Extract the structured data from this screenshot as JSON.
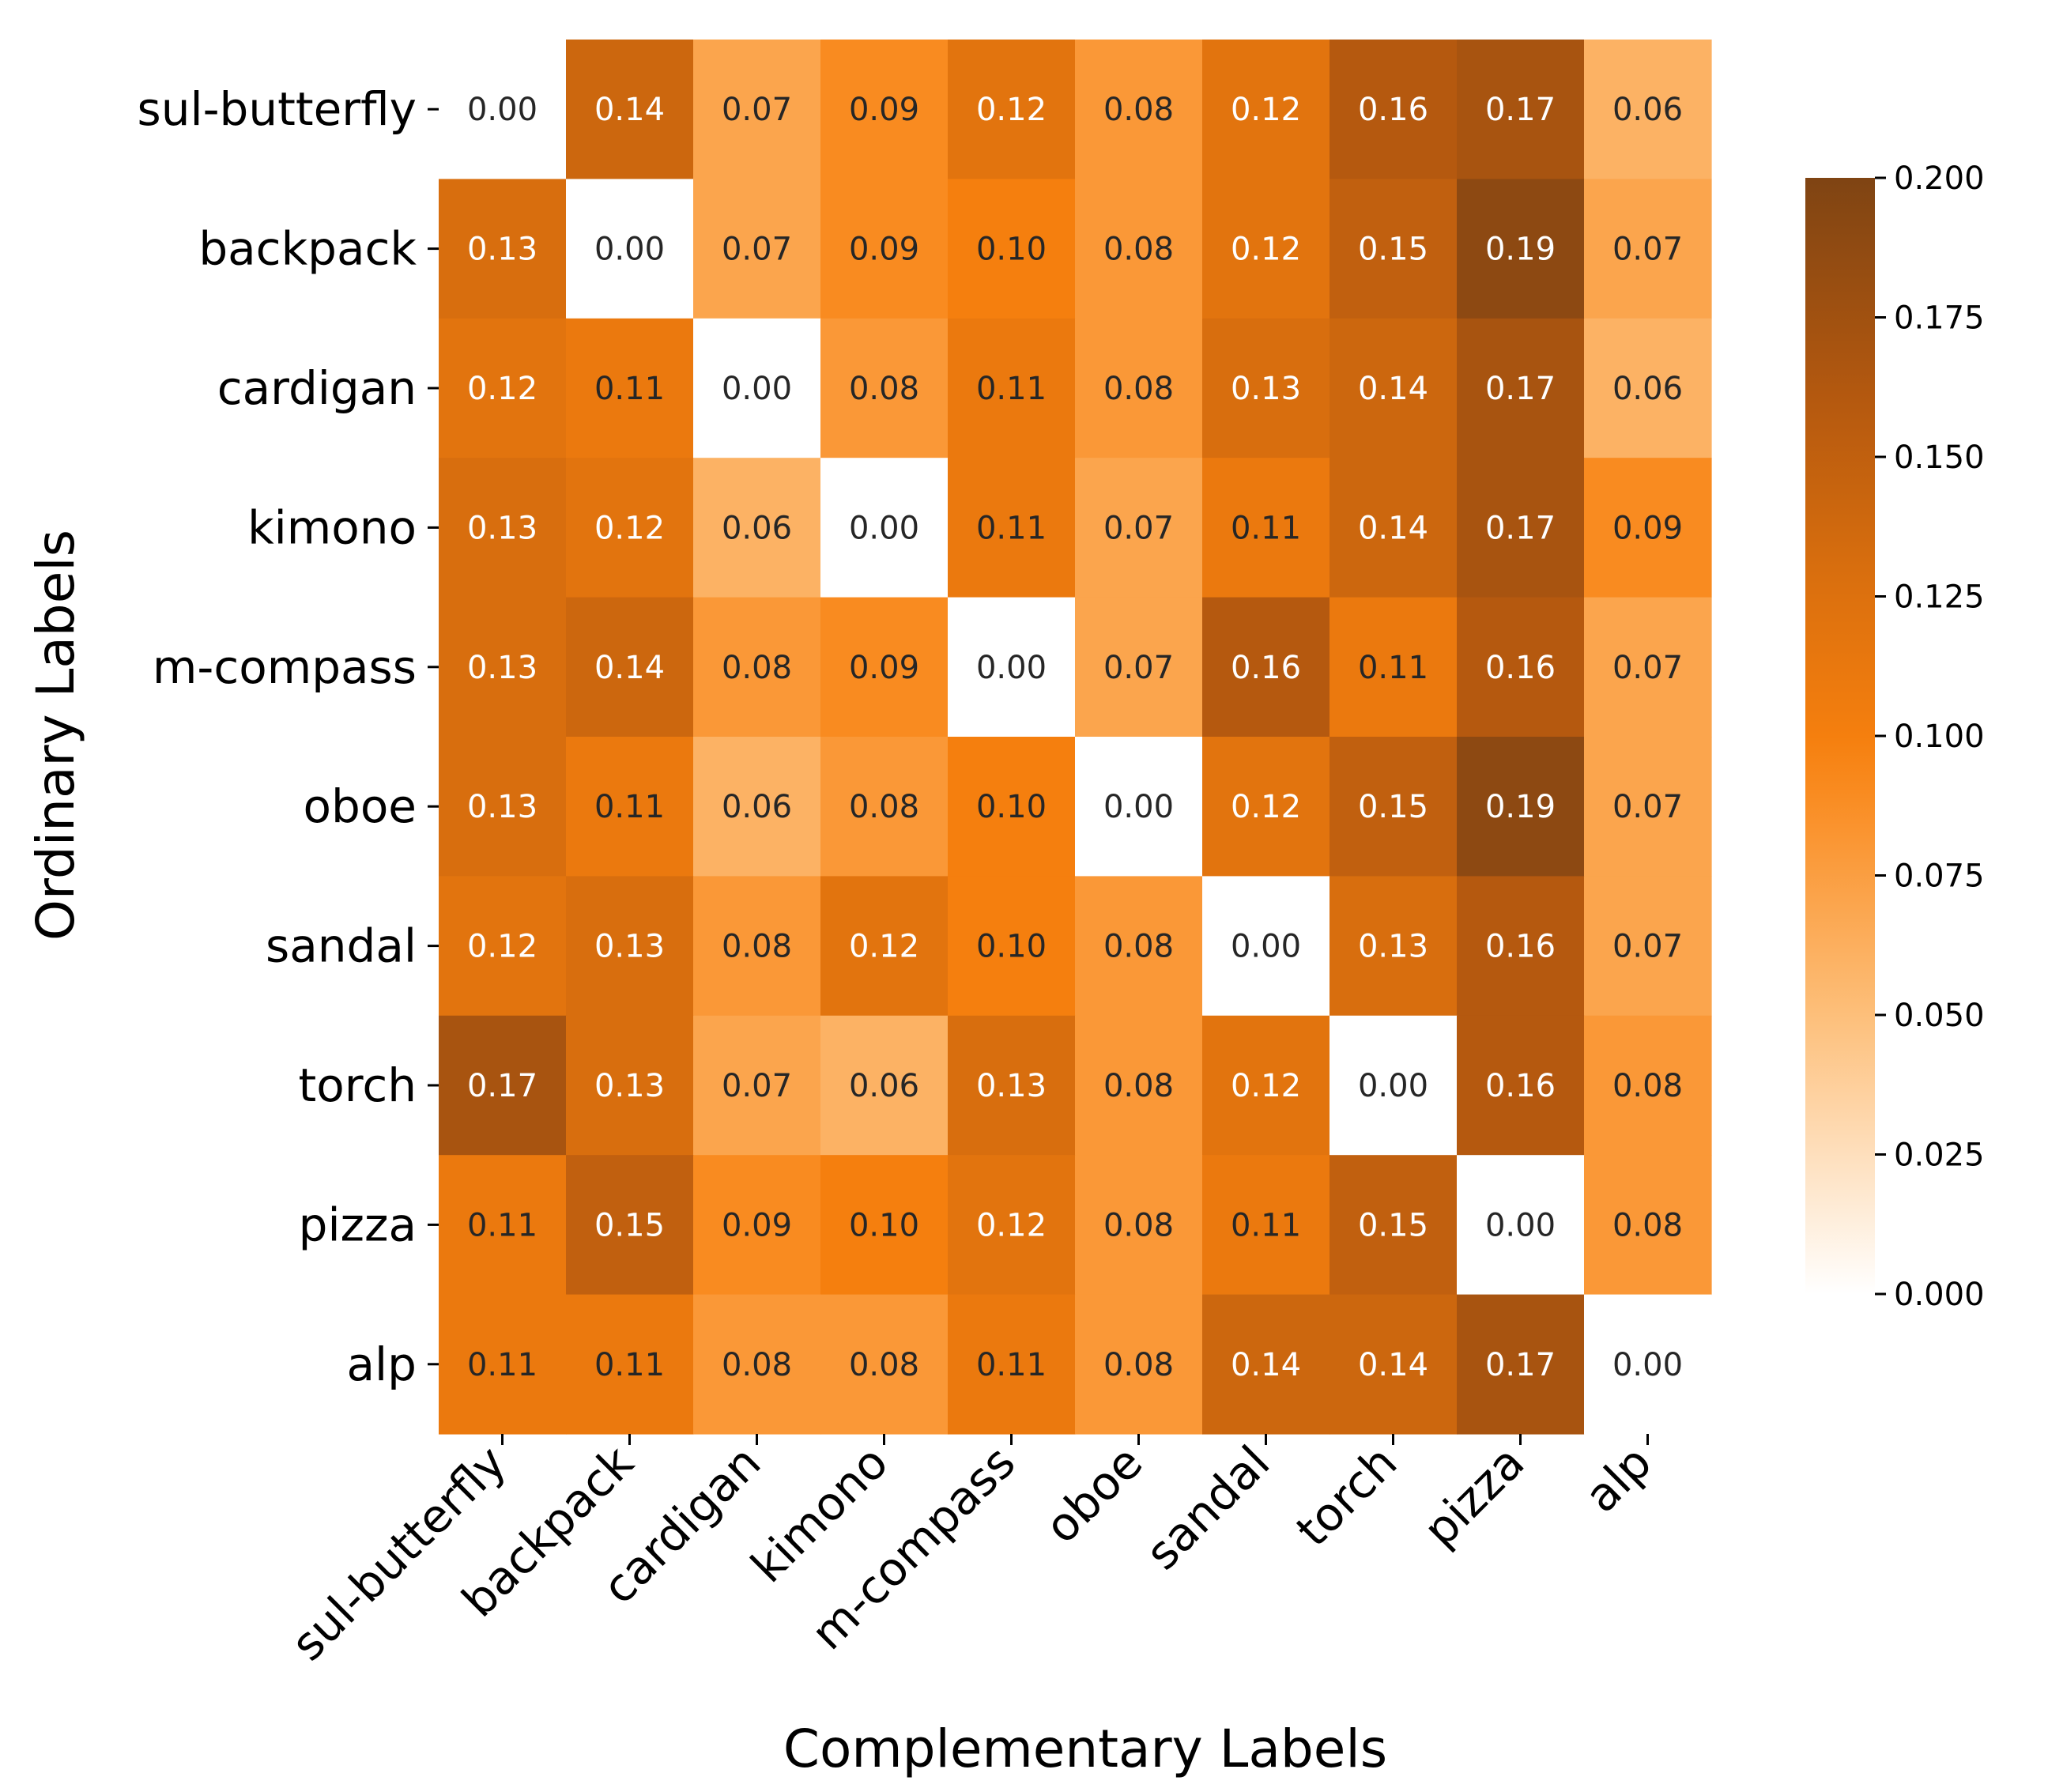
{
  "chart_data": {
    "type": "heatmap",
    "xlabel": "Complementary Labels",
    "ylabel": "Ordinary Labels",
    "row_labels": [
      "sul-butterfly",
      "backpack",
      "cardigan",
      "kimono",
      "m-compass",
      "oboe",
      "sandal",
      "torch",
      "pizza",
      "alp"
    ],
    "col_labels": [
      "sul-butterfly",
      "backpack",
      "cardigan",
      "kimono",
      "m-compass",
      "oboe",
      "sandal",
      "torch",
      "pizza",
      "alp"
    ],
    "values": [
      [
        0.0,
        0.14,
        0.07,
        0.09,
        0.12,
        0.08,
        0.12,
        0.16,
        0.17,
        0.06
      ],
      [
        0.13,
        0.0,
        0.07,
        0.09,
        0.1,
        0.08,
        0.12,
        0.15,
        0.19,
        0.07
      ],
      [
        0.12,
        0.11,
        0.0,
        0.08,
        0.11,
        0.08,
        0.13,
        0.14,
        0.17,
        0.06
      ],
      [
        0.13,
        0.12,
        0.06,
        0.0,
        0.11,
        0.07,
        0.11,
        0.14,
        0.17,
        0.09
      ],
      [
        0.13,
        0.14,
        0.08,
        0.09,
        0.0,
        0.07,
        0.16,
        0.11,
        0.16,
        0.07
      ],
      [
        0.13,
        0.11,
        0.06,
        0.08,
        0.1,
        0.0,
        0.12,
        0.15,
        0.19,
        0.07
      ],
      [
        0.12,
        0.13,
        0.08,
        0.12,
        0.1,
        0.08,
        0.0,
        0.13,
        0.16,
        0.07
      ],
      [
        0.17,
        0.13,
        0.07,
        0.06,
        0.13,
        0.08,
        0.12,
        0.0,
        0.16,
        0.08
      ],
      [
        0.11,
        0.15,
        0.09,
        0.1,
        0.12,
        0.08,
        0.11,
        0.15,
        0.0,
        0.08
      ],
      [
        0.11,
        0.11,
        0.08,
        0.08,
        0.11,
        0.08,
        0.14,
        0.14,
        0.17,
        0.0
      ]
    ],
    "value_format_decimals": 2,
    "colorbar": {
      "vmin": 0.0,
      "vmax": 0.2,
      "ticks": [
        "0.000",
        "0.025",
        "0.050",
        "0.075",
        "0.100",
        "0.125",
        "0.150",
        "0.175",
        "0.200"
      ],
      "colors": [
        "#ffffff",
        "#fdbf7a",
        "#f98b20",
        "#f57f0e",
        "#d86e0e",
        "#b5590f",
        "#7f4413"
      ],
      "color_stops": [
        0.0,
        0.25,
        0.45,
        0.5,
        0.65,
        0.8,
        1.0
      ]
    }
  }
}
